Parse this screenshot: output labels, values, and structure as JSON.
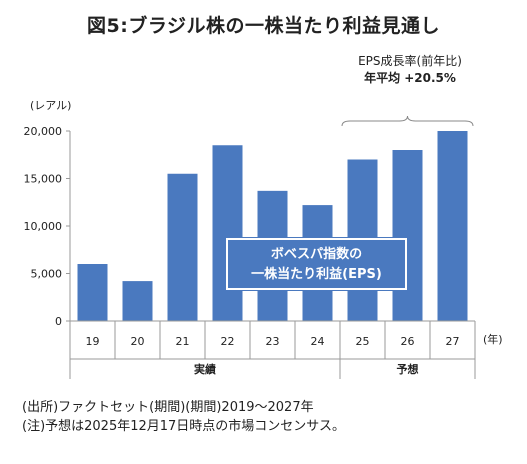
{
  "title": "図5:ブラジル株の一株当たり利益見通し",
  "eps_annotation": {
    "line1": "EPS成長率(前年比)",
    "line2": "年平均 +20.5%"
  },
  "callout": {
    "line1": "ボベスパ指数の",
    "line2": "一株当たり利益(EPS)"
  },
  "notes": [
    "(出所)ファクトセット(期間)(期間)2019〜2027年",
    "(注)予想は2025年12月17日時点の市場コンセンサス。"
  ],
  "chart_data": {
    "type": "bar",
    "categories": [
      "19",
      "20",
      "21",
      "22",
      "23",
      "24",
      "25",
      "26",
      "27"
    ],
    "values": [
      6000,
      4200,
      15500,
      18500,
      13700,
      12200,
      17000,
      18000,
      20000
    ],
    "ylabel": "(レアル)",
    "xlabel": "(年)",
    "ylim": [
      0,
      20000
    ],
    "yticks": [
      0,
      5000,
      10000,
      15000,
      20000
    ],
    "ytick_labels": [
      "0",
      "5,000",
      "10,000",
      "15,000",
      "20,000"
    ],
    "groups": [
      {
        "label": "実績",
        "from": 0,
        "to": 5
      },
      {
        "label": "予想",
        "from": 6,
        "to": 8
      }
    ],
    "bar_color": "#4a79bf",
    "grid": false
  }
}
